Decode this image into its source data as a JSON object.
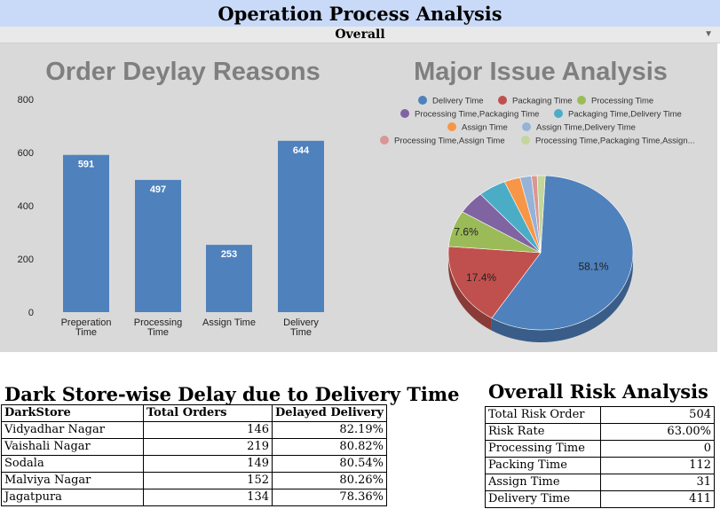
{
  "header": {
    "title": "Operation Process Analysis",
    "subtitle": "Overall"
  },
  "bar_chart_title": "Order Deylay Reasons",
  "pie_chart_title": "Major Issue Analysis",
  "chart_data": [
    {
      "type": "bar",
      "title": "Order Deylay Reasons",
      "categories": [
        "Preperation Time",
        "Processing Time",
        "Assign Time",
        "Delivery Time"
      ],
      "values": [
        591,
        497,
        253,
        644
      ],
      "ylim": [
        0,
        800
      ],
      "yticks": [
        0,
        200,
        400,
        600,
        800
      ],
      "color": "#4f81bd",
      "grid": false
    },
    {
      "type": "pie",
      "title": "Major Issue Analysis",
      "legend_position": "top",
      "labels": [
        "Delivery Time",
        "Packaging Time",
        "Processing Time",
        "Processing Time,Packaging Time",
        "Packaging Time,Delivery Time",
        "Assign Time",
        "Assign Time,Delivery Time",
        "Processing Time,Assign Time",
        "Processing Time,Packaging Time,Assign..."
      ],
      "values": [
        58.1,
        17.4,
        7.6,
        4.8,
        4.9,
        2.8,
        2.0,
        1.0,
        1.4
      ],
      "data_labels": [
        "58.1%",
        "17.4%",
        "7.6%",
        "",
        "",
        "",
        "",
        "",
        ""
      ],
      "colors": [
        "#4f81bd",
        "#c0504d",
        "#9bbb59",
        "#8064a2",
        "#4bacc6",
        "#f79646",
        "#95b3d7",
        "#d99694",
        "#c3d69b"
      ]
    }
  ],
  "delay_table": {
    "title": "Dark Store-wise Delay due to Delivery Time",
    "headers": [
      "DarkStore",
      "Total Orders",
      "Delayed Delivery"
    ],
    "rows": [
      [
        "Vidyadhar Nagar",
        "146",
        "82.19%"
      ],
      [
        "Vaishali Nagar",
        "219",
        "80.82%"
      ],
      [
        "Sodala",
        "149",
        "80.54%"
      ],
      [
        "Malviya Nagar",
        "152",
        "80.26%"
      ],
      [
        "Jagatpura",
        "134",
        "78.36%"
      ]
    ]
  },
  "risk_table": {
    "title": "Overall Risk Analysis",
    "rows": [
      [
        "Total Risk Order",
        "504"
      ],
      [
        "Risk Rate",
        "63.00%"
      ],
      [
        "Processing Time",
        "0"
      ],
      [
        "Packing Time",
        "112"
      ],
      [
        "Assign Time",
        "31"
      ],
      [
        "Delivery Time",
        "411"
      ]
    ]
  }
}
